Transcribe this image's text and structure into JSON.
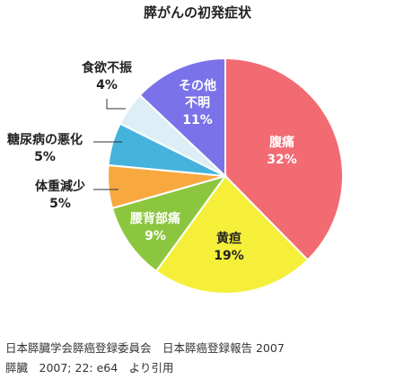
{
  "chart_data": {
    "type": "pie",
    "title": "膵がんの初発症状",
    "start_angle_deg": 0,
    "direction": "clockwise",
    "slices": [
      {
        "label": "腹痛",
        "value_label": "32%",
        "value": 32,
        "color": "#f26b72"
      },
      {
        "label": "黄疸",
        "value_label": "19%",
        "value": 19,
        "color": "#f5ef3a"
      },
      {
        "label": "腰背部痛",
        "value_label": "9%",
        "value": 9,
        "color": "#8cc63f"
      },
      {
        "label": "体重減少",
        "value_label": "5%",
        "value": 5,
        "color": "#f7a940"
      },
      {
        "label": "糖尿病の悪化",
        "value_label": "5%",
        "value": 5,
        "color": "#45b3dc"
      },
      {
        "label": "食欲不振",
        "value_label": "4%",
        "value": 4,
        "color": "#ddeef7"
      },
      {
        "label": "その他\n不明",
        "value_label": "11%",
        "value": 11,
        "color": "#7b72e9"
      }
    ]
  },
  "source": {
    "line1": "日本膵臓学会膵癌登録委員会　日本膵癌登録報告 2007",
    "line2": "膵臓　2007; 22: e64　より引用"
  }
}
